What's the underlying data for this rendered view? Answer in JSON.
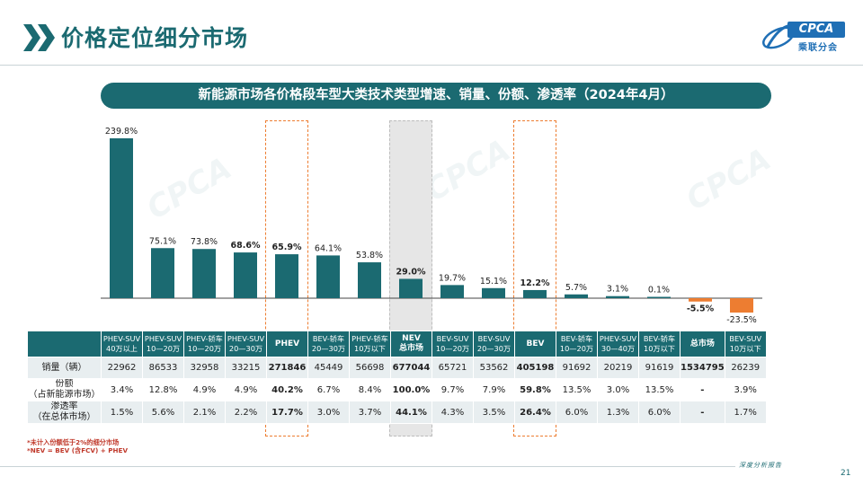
{
  "header": {
    "title": "价格定位细分市场",
    "logo_text": "CPCA",
    "logo_subtext": "乘联分会"
  },
  "banner": "新能源市场各价格段车型大类技术类型增速、销量、份额、渗透率（2024年4月）",
  "colors": {
    "teal": "#1b6a71",
    "orange": "#ed7d31",
    "highlight_border": "#ed7d31",
    "nev_column_bg": "#e6e6e6"
  },
  "chart_data": {
    "type": "bar",
    "categories": [
      "PHEV-SUV 40万以上",
      "PHEV-SUV 10—20万",
      "PHEV-轿车 10—20万",
      "PHEV-SUV 20—30万",
      "PHEV",
      "BEV-轿车 20—30万",
      "PHEV-轿车 10万以下",
      "NEV 总市场",
      "BEV-SUV 10—20万",
      "BEV-SUV 20—30万",
      "BEV",
      "BEV-轿车 10—20万",
      "PHEV-SUV 30—40万",
      "BEV-轿车 10万以下",
      "总市场",
      "BEV-SUV 10万以下"
    ],
    "values": [
      239.8,
      75.1,
      73.8,
      68.6,
      65.9,
      64.1,
      53.8,
      29.0,
      19.7,
      15.1,
      12.2,
      5.7,
      3.1,
      0.1,
      -5.5,
      -23.5
    ],
    "labels": [
      "239.8%",
      "75.1%",
      "73.8%",
      "68.6%",
      "65.9%",
      "64.1%",
      "53.8%",
      "29.0%",
      "19.7%",
      "15.1%",
      "12.2%",
      "5.7%",
      "3.1%",
      "0.1%",
      "-5.5%",
      "-23.5%"
    ],
    "bold_labels": [
      false,
      false,
      false,
      true,
      true,
      false,
      false,
      true,
      false,
      false,
      true,
      false,
      false,
      false,
      true,
      false
    ],
    "ylabel": "",
    "xlabel": "",
    "grid": false,
    "positive_color": "#1b6a71",
    "negative_color": "#ed7d31"
  },
  "table": {
    "headers": [
      [
        "PHEV-SUV",
        "40万以上"
      ],
      [
        "PHEV-SUV",
        "10—20万"
      ],
      [
        "PHEV-轿车",
        "10—20万"
      ],
      [
        "PHEV-SUV",
        "20—30万"
      ],
      [
        "PHEV"
      ],
      [
        "BEV-轿车",
        "20—30万"
      ],
      [
        "PHEV-轿车",
        "10万以下"
      ],
      [
        "NEV",
        "总市场"
      ],
      [
        "BEV-SUV",
        "10—20万"
      ],
      [
        "BEV-SUV",
        "20—30万"
      ],
      [
        "BEV"
      ],
      [
        "BEV-轿车",
        "10—20万"
      ],
      [
        "PHEV-SUV",
        "30—40万"
      ],
      [
        "BEV-轿车",
        "10万以下"
      ],
      [
        "总市场"
      ],
      [
        "BEV-SUV",
        "10万以下"
      ]
    ],
    "rows": [
      {
        "label": [
          "销量（辆）"
        ],
        "values": [
          "22962",
          "86533",
          "32958",
          "33215",
          "271846",
          "45449",
          "56698",
          "677044",
          "65721",
          "53562",
          "405198",
          "91692",
          "20219",
          "91619",
          "1534795",
          "26239"
        ]
      },
      {
        "label": [
          "份额",
          "（占新能源市场）"
        ],
        "values": [
          "3.4%",
          "12.8%",
          "4.9%",
          "4.9%",
          "40.2%",
          "6.7%",
          "8.4%",
          "100.0%",
          "9.7%",
          "7.9%",
          "59.8%",
          "13.5%",
          "3.0%",
          "13.5%",
          "-",
          "3.9%"
        ]
      },
      {
        "label": [
          "渗透率",
          "（在总体市场）"
        ],
        "values": [
          "1.5%",
          "5.6%",
          "2.1%",
          "2.2%",
          "17.7%",
          "3.0%",
          "3.7%",
          "44.1%",
          "4.3%",
          "3.5%",
          "26.4%",
          "6.0%",
          "1.3%",
          "6.0%",
          "-",
          "1.7%"
        ]
      }
    ]
  },
  "notes": [
    "*未计入份额低于2%的细分市场",
    "*NEV = BEV (含FCV) + PHEV"
  ],
  "footer": "深度分析报告",
  "page_number": "21"
}
